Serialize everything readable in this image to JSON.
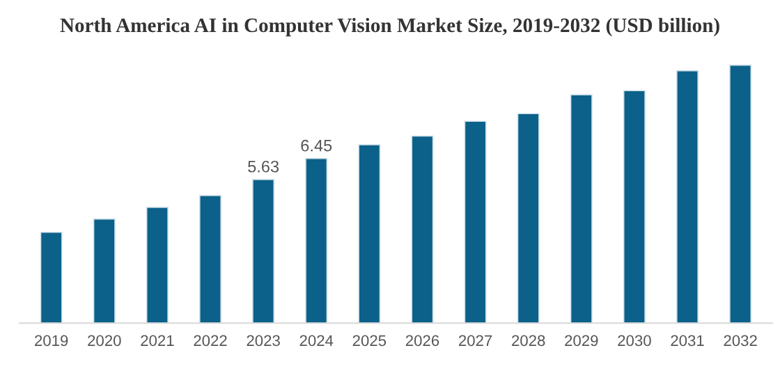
{
  "chart_data": {
    "type": "bar",
    "title": "North America AI in Computer Vision Market Size, 2019-2032 (USD billion)",
    "categories": [
      "2019",
      "2020",
      "2021",
      "2022",
      "2023",
      "2024",
      "2025",
      "2026",
      "2027",
      "2028",
      "2029",
      "2030",
      "2031",
      "2032"
    ],
    "values": [
      3.56,
      4.08,
      4.54,
      5.0,
      5.63,
      6.45,
      6.99,
      7.33,
      7.91,
      8.21,
      8.95,
      9.11,
      9.89,
      10.11
    ],
    "value_labels": [
      null,
      null,
      null,
      null,
      "5.63",
      "6.45",
      null,
      null,
      null,
      null,
      null,
      null,
      null,
      null
    ],
    "color": "#0b6189",
    "grid": false,
    "legend": false
  }
}
